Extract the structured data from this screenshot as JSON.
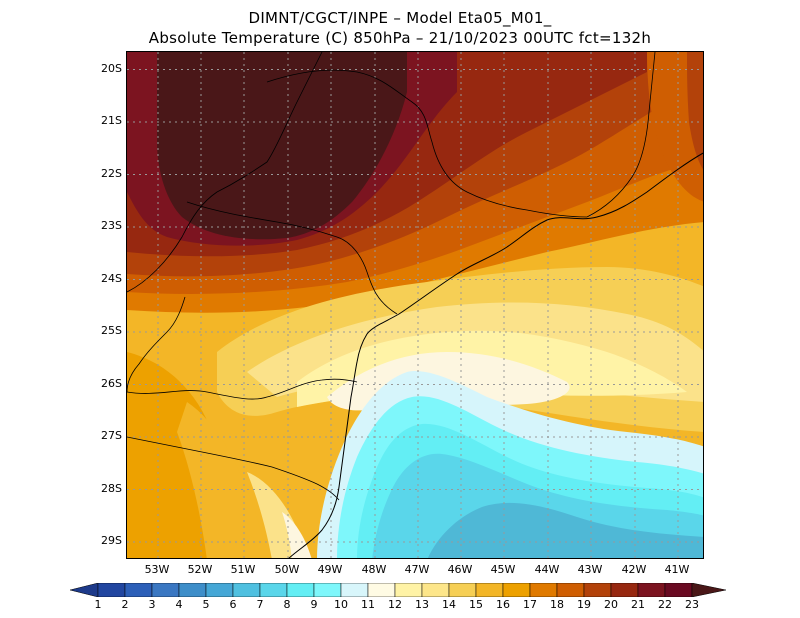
{
  "title": {
    "line1": "DIMNT/CGCT/INPE –  Model Eta05_M01_",
    "line2": "Absolute Temperature (C) 850hPa –  21/10/2023 00UTC fct=132h"
  },
  "axes": {
    "lat_labels": [
      "20S",
      "21S",
      "22S",
      "23S",
      "24S",
      "25S",
      "26S",
      "27S",
      "28S",
      "29S"
    ],
    "lon_labels": [
      "53W",
      "52W",
      "51W",
      "50W",
      "49W",
      "48W",
      "47W",
      "46W",
      "45W",
      "44W",
      "43W",
      "42W",
      "41W"
    ]
  },
  "colorbar": {
    "labels": [
      "1",
      "2",
      "3",
      "4",
      "5",
      "6",
      "7",
      "8",
      "9",
      "10",
      "11",
      "12",
      "13",
      "14",
      "15",
      "16",
      "17",
      "18",
      "19",
      "20",
      "21",
      "22",
      "23"
    ],
    "colors": [
      "#1d3a8a",
      "#2146a0",
      "#2c5fb8",
      "#3a77c2",
      "#3e8ec9",
      "#45a7d6",
      "#4fc0e0",
      "#5ad6ea",
      "#63eef4",
      "#7ef7fb",
      "#d8f6fb",
      "#fffbe4",
      "#fff3a6",
      "#fde68a",
      "#f6cf55",
      "#f3b627",
      "#eda100",
      "#e07a00",
      "#cf5e02",
      "#b3420a",
      "#972810",
      "#7c1420",
      "#6a0a22",
      "#4a1718"
    ]
  },
  "map_colors": {
    "c7": "#4fb8d6",
    "c8": "#5ad6ea",
    "c9": "#63eef4",
    "c10": "#7ef7fb",
    "c11": "#d6f5fb",
    "c12": "#fdf6e0",
    "c13": "#fff3a6",
    "c14": "#fbe28a",
    "c15": "#f6cf55",
    "c16": "#f3b627",
    "c17": "#eda100",
    "c18": "#e07a00",
    "c19": "#cf5e02",
    "c20": "#b3420a",
    "c21": "#972810",
    "c22": "#7c1420",
    "c23": "#4a1718"
  }
}
